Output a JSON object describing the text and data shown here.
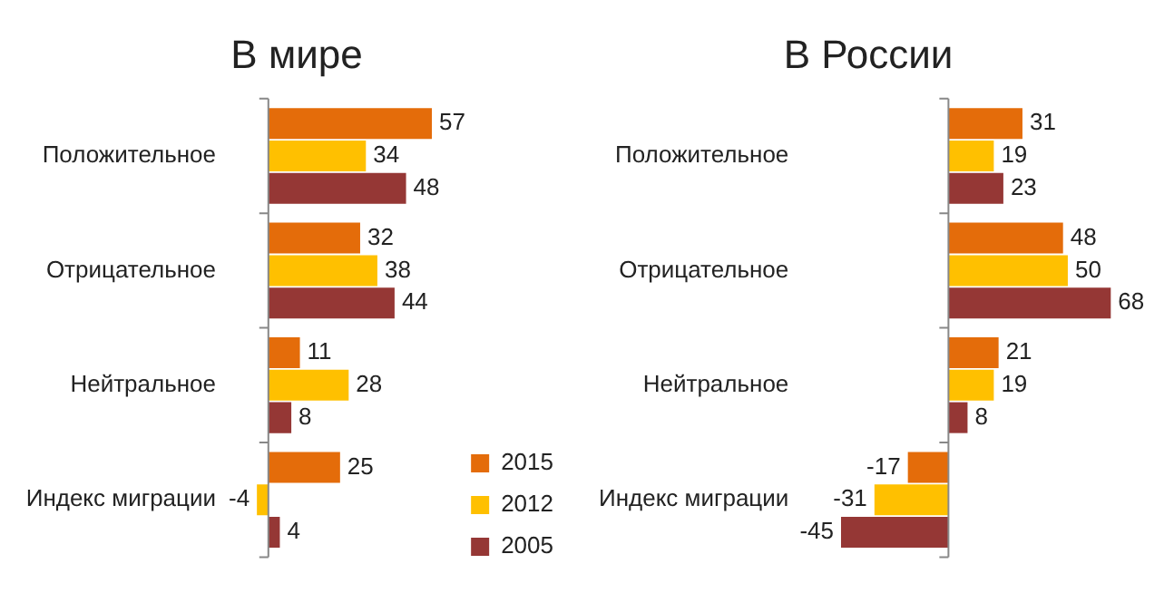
{
  "chart_data": [
    {
      "type": "bar",
      "title": "В мире",
      "orientation": "horizontal",
      "categories": [
        "Положительное",
        "Отрицательное",
        "Нейтральное",
        "Индекс миграции"
      ],
      "series": [
        {
          "name": "2015",
          "color": "#e46c0a",
          "values": [
            57,
            32,
            11,
            25
          ]
        },
        {
          "name": "2012",
          "color": "#ffc000",
          "values": [
            34,
            38,
            28,
            -4
          ]
        },
        {
          "name": "2005",
          "color": "#953735",
          "values": [
            48,
            44,
            8,
            4
          ]
        }
      ],
      "data_labels": true,
      "legend": "bottom right",
      "tick_labels": "y",
      "grid": false
    },
    {
      "type": "bar",
      "title": "В России",
      "orientation": "horizontal",
      "categories": [
        "Положительное",
        "Отрицательное",
        "Нейтральное",
        "Индекс миграции"
      ],
      "series": [
        {
          "color": "#e46c0a",
          "values": [
            31,
            48,
            21,
            -17
          ]
        },
        {
          "color": "#ffc000",
          "values": [
            19,
            50,
            19,
            -31
          ]
        },
        {
          "color": "#953735",
          "values": [
            23,
            68,
            8,
            -45
          ]
        }
      ],
      "data_labels": true,
      "legend": false,
      "tick_labels": "y",
      "grid": false
    }
  ]
}
